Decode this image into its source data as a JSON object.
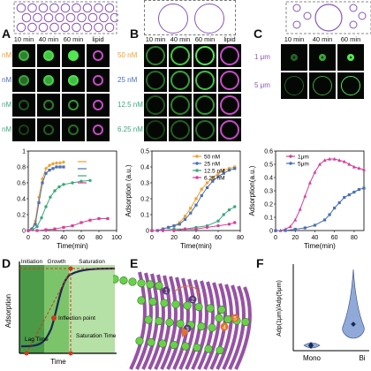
{
  "panels": {
    "A": {
      "label": "A",
      "time_labels": [
        "10 min",
        "40 min",
        "60 min",
        "lipid"
      ],
      "concentrations": [
        "nM",
        "nM",
        "nM",
        "nM"
      ]
    },
    "B": {
      "label": "B",
      "time_labels": [
        "10 min",
        "40 min",
        "60 min",
        "lipid"
      ],
      "concentrations": [
        "50 nM",
        "25 nM",
        "12.5 nM",
        "6.25 nM"
      ]
    },
    "C": {
      "label": "C",
      "time_labels": [
        "10 min",
        "40 min",
        "60 min"
      ],
      "sizes": [
        "1 μm",
        "5 μm"
      ]
    },
    "D": {
      "label": "D",
      "phases": [
        "Initiation",
        "Growth",
        "Saturation"
      ],
      "ylabel": "Adsorption",
      "xlabel": "Time",
      "annotations": [
        "Inflection point",
        "Lag Time",
        "Saturation Time"
      ]
    },
    "E": {
      "label": "E",
      "steps": [
        "1",
        "2",
        "3",
        "4",
        "5"
      ]
    },
    "F": {
      "label": "F",
      "ylabel": "Adp(1μm)/Adp(5μm)",
      "categories": [
        "Mono",
        "Bi"
      ],
      "medians": [
        0.5,
        1.8
      ]
    }
  },
  "chart_data": [
    {
      "type": "line",
      "panel": "A",
      "xlabel": "Time(min)",
      "ylabel": "",
      "xlim": [
        0,
        100
      ],
      "ylim": [
        0,
        1.0
      ],
      "xticks": [
        0,
        20,
        40,
        60,
        80,
        100
      ],
      "yticks": [
        0,
        0.2,
        0.4,
        0.6,
        0.8,
        1.0
      ],
      "series": [
        {
          "color": "#f0a030",
          "marker": "diamond",
          "x": [
            0,
            4,
            8,
            12,
            16,
            20,
            24,
            28,
            32,
            36,
            40
          ],
          "y": [
            0,
            0.02,
            0.12,
            0.42,
            0.65,
            0.78,
            0.82,
            0.84,
            0.85,
            0.85,
            0.86
          ]
        },
        {
          "color": "#4a6fb5",
          "marker": "square",
          "x": [
            0,
            4,
            8,
            12,
            16,
            20,
            24,
            28,
            32,
            36,
            40
          ],
          "y": [
            0,
            0.02,
            0.08,
            0.35,
            0.6,
            0.72,
            0.76,
            0.78,
            0.8,
            0.8,
            0.8
          ]
        },
        {
          "color": "#3aa87a",
          "marker": "circle",
          "x": [
            0,
            5,
            10,
            15,
            20,
            25,
            30,
            35,
            40,
            50,
            60,
            70
          ],
          "y": [
            0,
            0.01,
            0.05,
            0.16,
            0.3,
            0.42,
            0.5,
            0.55,
            0.58,
            0.6,
            0.62,
            0.63
          ]
        },
        {
          "color": "#d63f9a",
          "marker": "square",
          "x": [
            0,
            10,
            20,
            30,
            40,
            50,
            60,
            70,
            80,
            90
          ],
          "y": [
            0,
            0.0,
            0.01,
            0.02,
            0.04,
            0.06,
            0.1,
            0.13,
            0.15,
            0.15
          ]
        }
      ]
    },
    {
      "type": "line",
      "panel": "B",
      "xlabel": "Time(min)",
      "ylabel": "Adsorption (a.u.)",
      "xlim": [
        0,
        80
      ],
      "ylim": [
        0,
        0.5
      ],
      "xticks": [
        0,
        20,
        40,
        60,
        80
      ],
      "yticks": [
        0.0,
        0.1,
        0.2,
        0.3,
        0.4,
        0.5
      ],
      "series": [
        {
          "name": "50 nM",
          "color": "#f0a030",
          "marker": "square",
          "x": [
            0,
            5,
            10,
            15,
            20,
            25,
            30,
            35,
            40,
            45,
            50,
            55,
            60,
            65,
            70,
            75
          ],
          "y": [
            0,
            0,
            0.01,
            0.02,
            0.03,
            0.05,
            0.09,
            0.14,
            0.2,
            0.26,
            0.3,
            0.33,
            0.36,
            0.38,
            0.39,
            0.4
          ]
        },
        {
          "name": "25 nM",
          "color": "#4a6fb5",
          "marker": "square",
          "x": [
            0,
            5,
            10,
            15,
            20,
            25,
            30,
            35,
            40,
            45,
            50,
            55,
            60,
            65,
            70,
            75
          ],
          "y": [
            0,
            0,
            0.01,
            0.02,
            0.03,
            0.04,
            0.07,
            0.11,
            0.16,
            0.22,
            0.27,
            0.31,
            0.34,
            0.36,
            0.38,
            0.39
          ]
        },
        {
          "name": "12.5 nM",
          "color": "#3aa87a",
          "marker": "circle",
          "x": [
            0,
            10,
            20,
            30,
            40,
            50,
            60,
            65,
            70,
            75
          ],
          "y": [
            0,
            0,
            0.01,
            0.01,
            0.02,
            0.03,
            0.06,
            0.1,
            0.13,
            0.15
          ]
        },
        {
          "name": "6.25 nM",
          "color": "#d63f9a",
          "marker": "circle",
          "x": [
            0,
            10,
            20,
            30,
            40,
            50,
            60,
            70,
            75
          ],
          "y": [
            0,
            0,
            0,
            0.01,
            0.01,
            0.02,
            0.03,
            0.04,
            0.05
          ]
        }
      ]
    },
    {
      "type": "line",
      "panel": "C",
      "xlabel": "Time(min)",
      "ylabel": "Adsorption(a.u.)",
      "xlim": [
        0,
        90
      ],
      "ylim": [
        0,
        0.6
      ],
      "xticks": [
        0,
        20,
        40,
        60,
        80
      ],
      "yticks": [
        0.0,
        0.1,
        0.2,
        0.3,
        0.4,
        0.5,
        0.6
      ],
      "series": [
        {
          "name": "1μm",
          "color": "#d63f9a",
          "marker": "triangle",
          "x": [
            0,
            5,
            10,
            15,
            20,
            25,
            30,
            35,
            40,
            45,
            50,
            55,
            60,
            65,
            70,
            75,
            80,
            85,
            90
          ],
          "y": [
            0,
            0,
            0.01,
            0.03,
            0.08,
            0.16,
            0.26,
            0.36,
            0.44,
            0.5,
            0.53,
            0.54,
            0.54,
            0.53,
            0.52,
            0.5,
            0.48,
            0.47,
            0.46
          ]
        },
        {
          "name": "5μm",
          "color": "#4a6fb5",
          "marker": "square",
          "x": [
            0,
            10,
            20,
            30,
            40,
            50,
            55,
            60,
            65,
            70,
            75,
            80,
            85,
            90
          ],
          "y": [
            0,
            0,
            0.01,
            0.02,
            0.04,
            0.08,
            0.12,
            0.17,
            0.21,
            0.25,
            0.27,
            0.29,
            0.31,
            0.32
          ]
        }
      ]
    }
  ]
}
